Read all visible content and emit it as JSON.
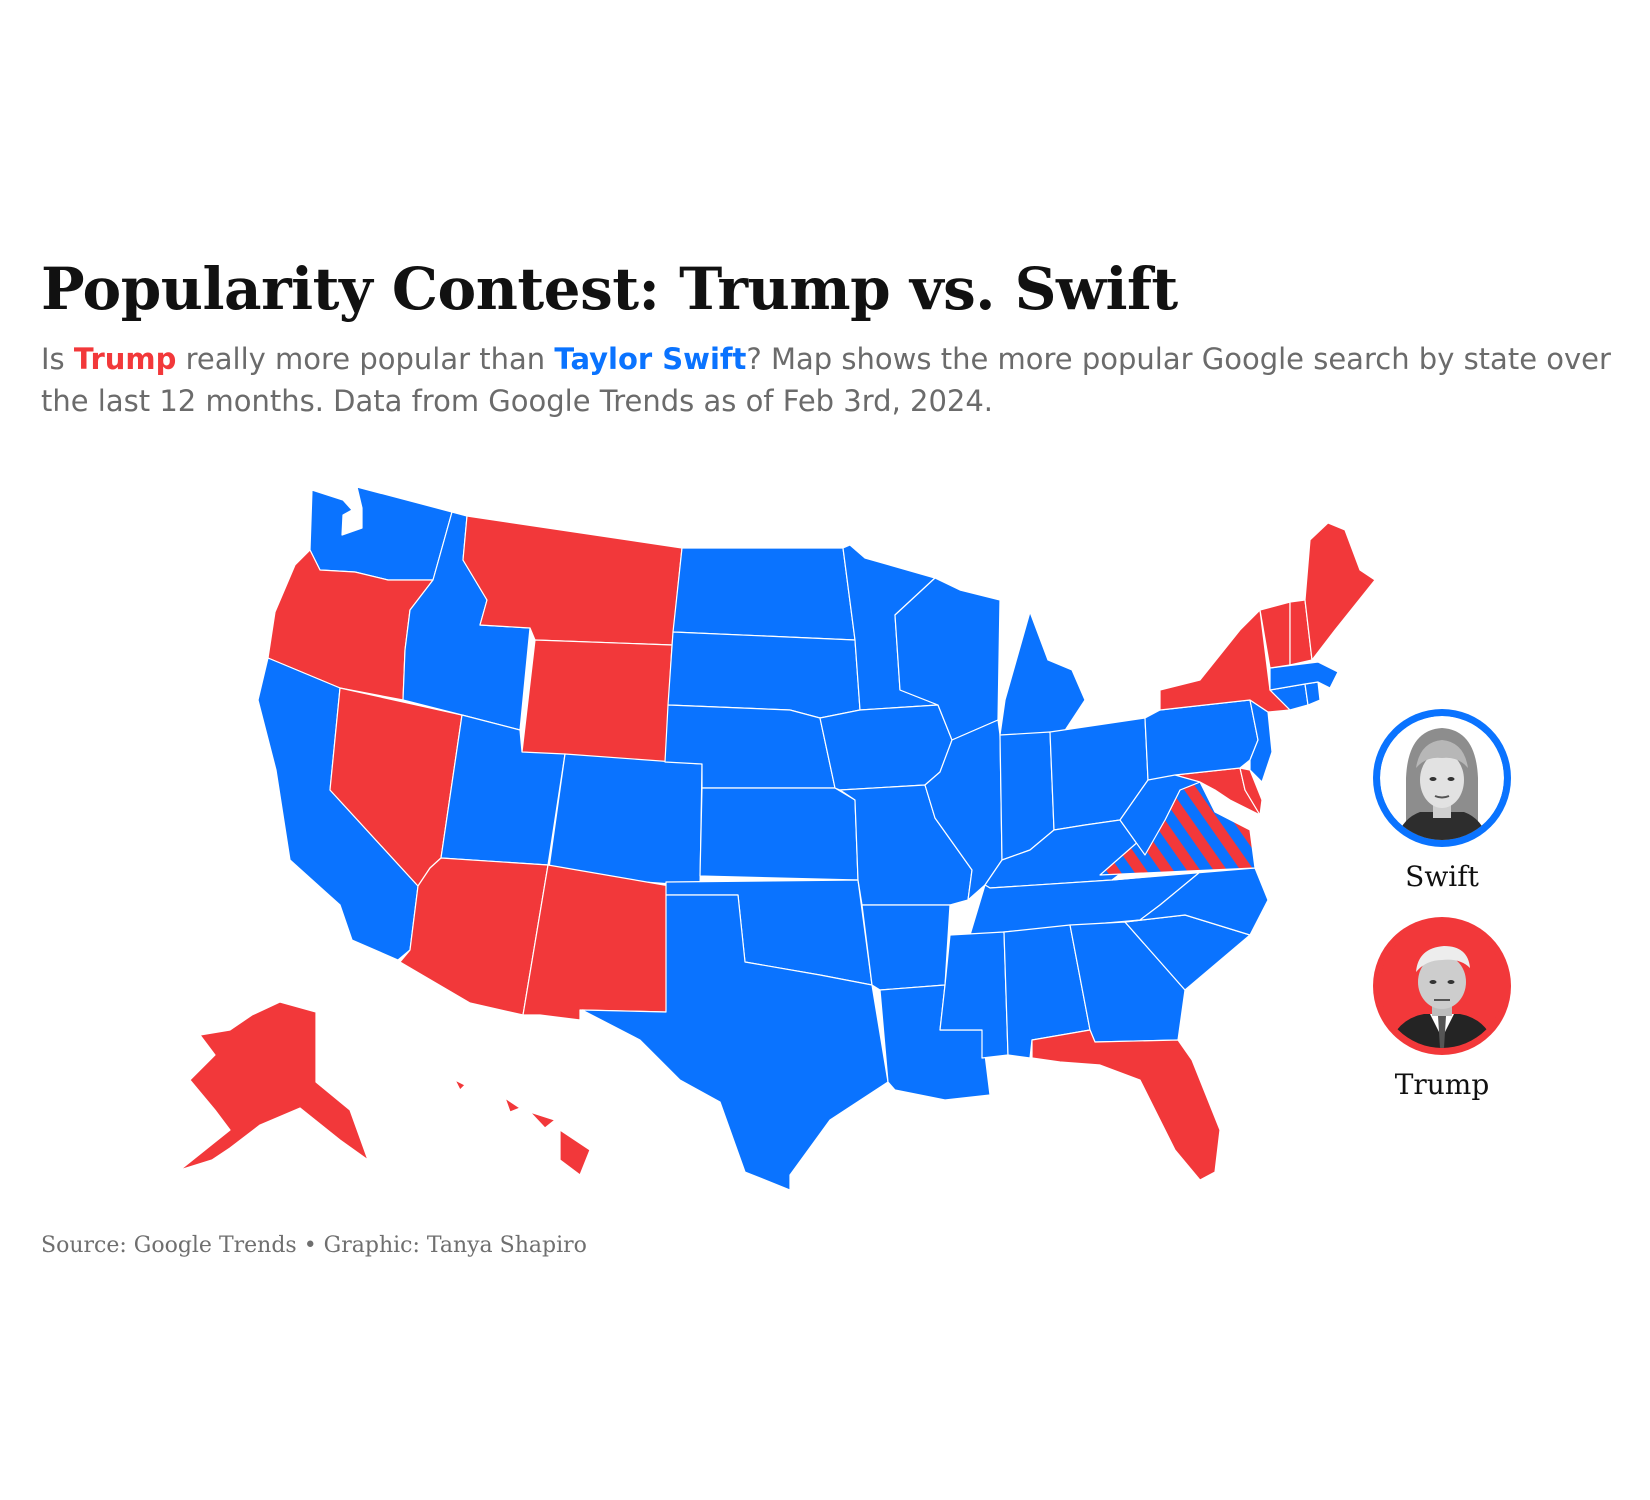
{
  "title": "Popularity Contest: Trump vs. Swift",
  "subtitle": {
    "part1": "Is ",
    "trump": "Trump",
    "part2": " really more popular than ",
    "swift": "Taylor Swift",
    "part3": "? Map shows the more popular Google search by state over the last 12 months. Data from Google Trends as of Feb 3rd, 2024."
  },
  "colors": {
    "trump": "#f2383a",
    "swift": "#0a73ff",
    "tie": "striped"
  },
  "legend": {
    "swift_label": "Swift",
    "trump_label": "Trump"
  },
  "source": "Source: Google Trends • Graphic: Tanya Shapiro",
  "map_data": {
    "states": [
      {
        "state": "Washington",
        "winner": "Swift"
      },
      {
        "state": "Oregon",
        "winner": "Trump"
      },
      {
        "state": "California",
        "winner": "Swift"
      },
      {
        "state": "Nevada",
        "winner": "Trump"
      },
      {
        "state": "Idaho",
        "winner": "Swift"
      },
      {
        "state": "Montana",
        "winner": "Trump"
      },
      {
        "state": "Wyoming",
        "winner": "Trump"
      },
      {
        "state": "Utah",
        "winner": "Swift"
      },
      {
        "state": "Colorado",
        "winner": "Swift"
      },
      {
        "state": "Arizona",
        "winner": "Trump"
      },
      {
        "state": "New Mexico",
        "winner": "Trump"
      },
      {
        "state": "North Dakota",
        "winner": "Swift"
      },
      {
        "state": "South Dakota",
        "winner": "Swift"
      },
      {
        "state": "Nebraska",
        "winner": "Swift"
      },
      {
        "state": "Kansas",
        "winner": "Swift"
      },
      {
        "state": "Oklahoma",
        "winner": "Swift"
      },
      {
        "state": "Texas",
        "winner": "Swift"
      },
      {
        "state": "Minnesota",
        "winner": "Swift"
      },
      {
        "state": "Iowa",
        "winner": "Swift"
      },
      {
        "state": "Missouri",
        "winner": "Swift"
      },
      {
        "state": "Arkansas",
        "winner": "Swift"
      },
      {
        "state": "Louisiana",
        "winner": "Swift"
      },
      {
        "state": "Wisconsin",
        "winner": "Swift"
      },
      {
        "state": "Illinois",
        "winner": "Swift"
      },
      {
        "state": "Michigan",
        "winner": "Swift"
      },
      {
        "state": "Indiana",
        "winner": "Swift"
      },
      {
        "state": "Ohio",
        "winner": "Swift"
      },
      {
        "state": "Kentucky",
        "winner": "Swift"
      },
      {
        "state": "Tennessee",
        "winner": "Swift"
      },
      {
        "state": "Mississippi",
        "winner": "Swift"
      },
      {
        "state": "Alabama",
        "winner": "Swift"
      },
      {
        "state": "Georgia",
        "winner": "Swift"
      },
      {
        "state": "Florida",
        "winner": "Trump"
      },
      {
        "state": "South Carolina",
        "winner": "Swift"
      },
      {
        "state": "North Carolina",
        "winner": "Swift"
      },
      {
        "state": "Virginia",
        "winner": "Tie"
      },
      {
        "state": "West Virginia",
        "winner": "Swift"
      },
      {
        "state": "Maryland",
        "winner": "Trump"
      },
      {
        "state": "Delaware",
        "winner": "Trump"
      },
      {
        "state": "Pennsylvania",
        "winner": "Swift"
      },
      {
        "state": "New Jersey",
        "winner": "Swift"
      },
      {
        "state": "New York",
        "winner": "Trump"
      },
      {
        "state": "Connecticut",
        "winner": "Swift"
      },
      {
        "state": "Rhode Island",
        "winner": "Swift"
      },
      {
        "state": "Massachusetts",
        "winner": "Swift"
      },
      {
        "state": "Vermont",
        "winner": "Trump"
      },
      {
        "state": "New Hampshire",
        "winner": "Trump"
      },
      {
        "state": "Maine",
        "winner": "Trump"
      },
      {
        "state": "Alaska",
        "winner": "Trump"
      },
      {
        "state": "Hawaii",
        "winner": "Trump"
      }
    ]
  }
}
